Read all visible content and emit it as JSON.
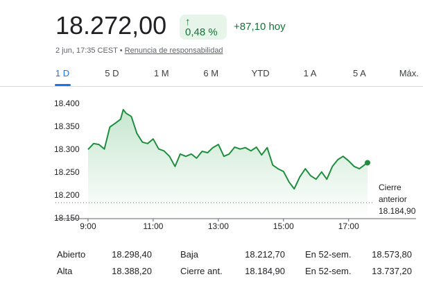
{
  "header": {
    "price": "18.272,00",
    "change_arrow": "↑",
    "change_percent": "0,48 %",
    "change_today": "+87,10 hoy",
    "timestamp": "2 jun, 17:35 CEST",
    "separator": "•",
    "disclaimer": "Renuncia de responsabilidad"
  },
  "tabs": {
    "items": [
      "1 D",
      "5 D",
      "1 M",
      "6 M",
      "YTD",
      "1 A",
      "5 A",
      "Máx."
    ],
    "selected": 0
  },
  "chart_data": {
    "type": "line",
    "color": "#1e8e3e",
    "x": [
      9,
      9.17,
      9.33,
      9.5,
      9.67,
      9.83,
      10,
      10.08,
      10.17,
      10.33,
      10.5,
      10.67,
      10.83,
      11,
      11.17,
      11.33,
      11.5,
      11.67,
      11.83,
      12,
      12.17,
      12.33,
      12.5,
      12.67,
      12.83,
      13,
      13.17,
      13.33,
      13.5,
      13.67,
      13.83,
      14,
      14.17,
      14.33,
      14.5,
      14.67,
      14.83,
      15,
      15.17,
      15.33,
      15.5,
      15.67,
      15.83,
      16,
      16.17,
      16.33,
      16.5,
      16.67,
      16.83,
      17,
      17.17,
      17.33,
      17.5,
      17.58
    ],
    "values": [
      18301,
      18314,
      18312,
      18302,
      18350,
      18358,
      18367,
      18388,
      18380,
      18373,
      18336,
      18317,
      18314,
      18324,
      18302,
      18298,
      18286,
      18264,
      18291,
      18286,
      18291,
      18282,
      18297,
      18294,
      18305,
      18312,
      18286,
      18291,
      18306,
      18302,
      18305,
      18298,
      18306,
      18289,
      18305,
      18267,
      18259,
      18253,
      18230,
      18215,
      18241,
      18259,
      18244,
      18236,
      18252,
      18236,
      18264,
      18279,
      18286,
      18276,
      18264,
      18259,
      18268,
      18272
    ],
    "xlim": [
      8,
      19.07
    ],
    "ylim": [
      18150,
      18400
    ],
    "xticks": [
      {
        "value": 9,
        "label": "9:00"
      },
      {
        "value": 11,
        "label": "11:00"
      },
      {
        "value": 13,
        "label": "13:00"
      },
      {
        "value": 15,
        "label": "15:00"
      },
      {
        "value": 17,
        "label": "17:00"
      }
    ],
    "yticks": [
      {
        "value": 18150,
        "label": "18.150"
      },
      {
        "value": 18200,
        "label": "18.200"
      },
      {
        "value": 18250,
        "label": "18.250"
      },
      {
        "value": 18300,
        "label": "18.300"
      },
      {
        "value": 18350,
        "label": "18.350"
      },
      {
        "value": 18400,
        "label": "18.400"
      }
    ],
    "grid": false,
    "previous_close": 18184.9,
    "previous_close_value_label": "18.184,90",
    "previous_close_title": [
      "Cierre",
      "anterior"
    ]
  },
  "stats": {
    "rows": [
      [
        "Abierto",
        "18.298,40",
        "Baja",
        "18.212,70",
        "En 52-sem.",
        "18.573,80"
      ],
      [
        "Alta",
        "18.388,20",
        "Cierre ant.",
        "18.184,90",
        "En 52-sem.",
        "13.737,20"
      ]
    ]
  }
}
